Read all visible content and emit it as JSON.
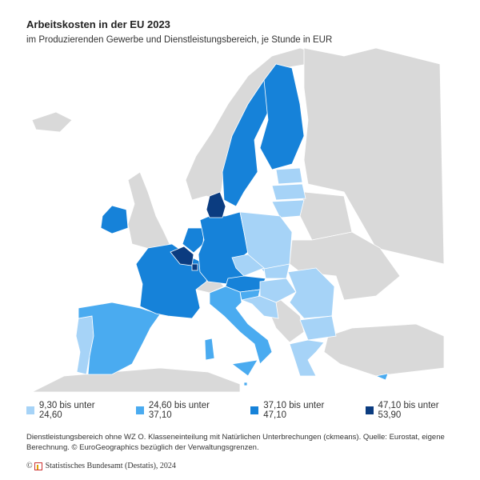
{
  "title": "Arbeitskosten in der EU 2023",
  "subtitle": "im Produzierenden Gewerbe und Dienstleistungsbereich, je Stunde in EUR",
  "legend": [
    {
      "label": "9,30 bis unter 24,60",
      "color": "#a6d3f7"
    },
    {
      "label": "24,60 bis unter 37,10",
      "color": "#4aabf0"
    },
    {
      "label": "37,10 bis unter 47,10",
      "color": "#1682d9"
    },
    {
      "label": "47,10 bis unter 53,90",
      "color": "#0b3c80"
    }
  ],
  "non_eu_color": "#d9d9d9",
  "map_classes": {
    "PT": 0,
    "ES": 1,
    "FR": 2,
    "BE": 3,
    "NL": 2,
    "LU": 3,
    "DE": 2,
    "DK": 3,
    "IE": 2,
    "SE": 2,
    "FI": 2,
    "EE": 0,
    "LV": 0,
    "LT": 0,
    "PL": 0,
    "CZ": 0,
    "SK": 0,
    "AT": 2,
    "HU": 0,
    "RO": 0,
    "BG": 0,
    "SI": 1,
    "HR": 0,
    "IT": 1,
    "GR": 0,
    "MT": 1,
    "CY": 1
  },
  "note": "Dienstleistungsbereich ohne WZ O. Klasseneinteilung mit Natürlichen Unterbrechungen (ckmeans). Quelle: Eurostat, eigene Berechnung. © EuroGeographics bezüglich der Verwaltungsgrenzen.",
  "credit": "Statistisches Bundesamt (Destatis), 2024",
  "credit_symbol": "©"
}
